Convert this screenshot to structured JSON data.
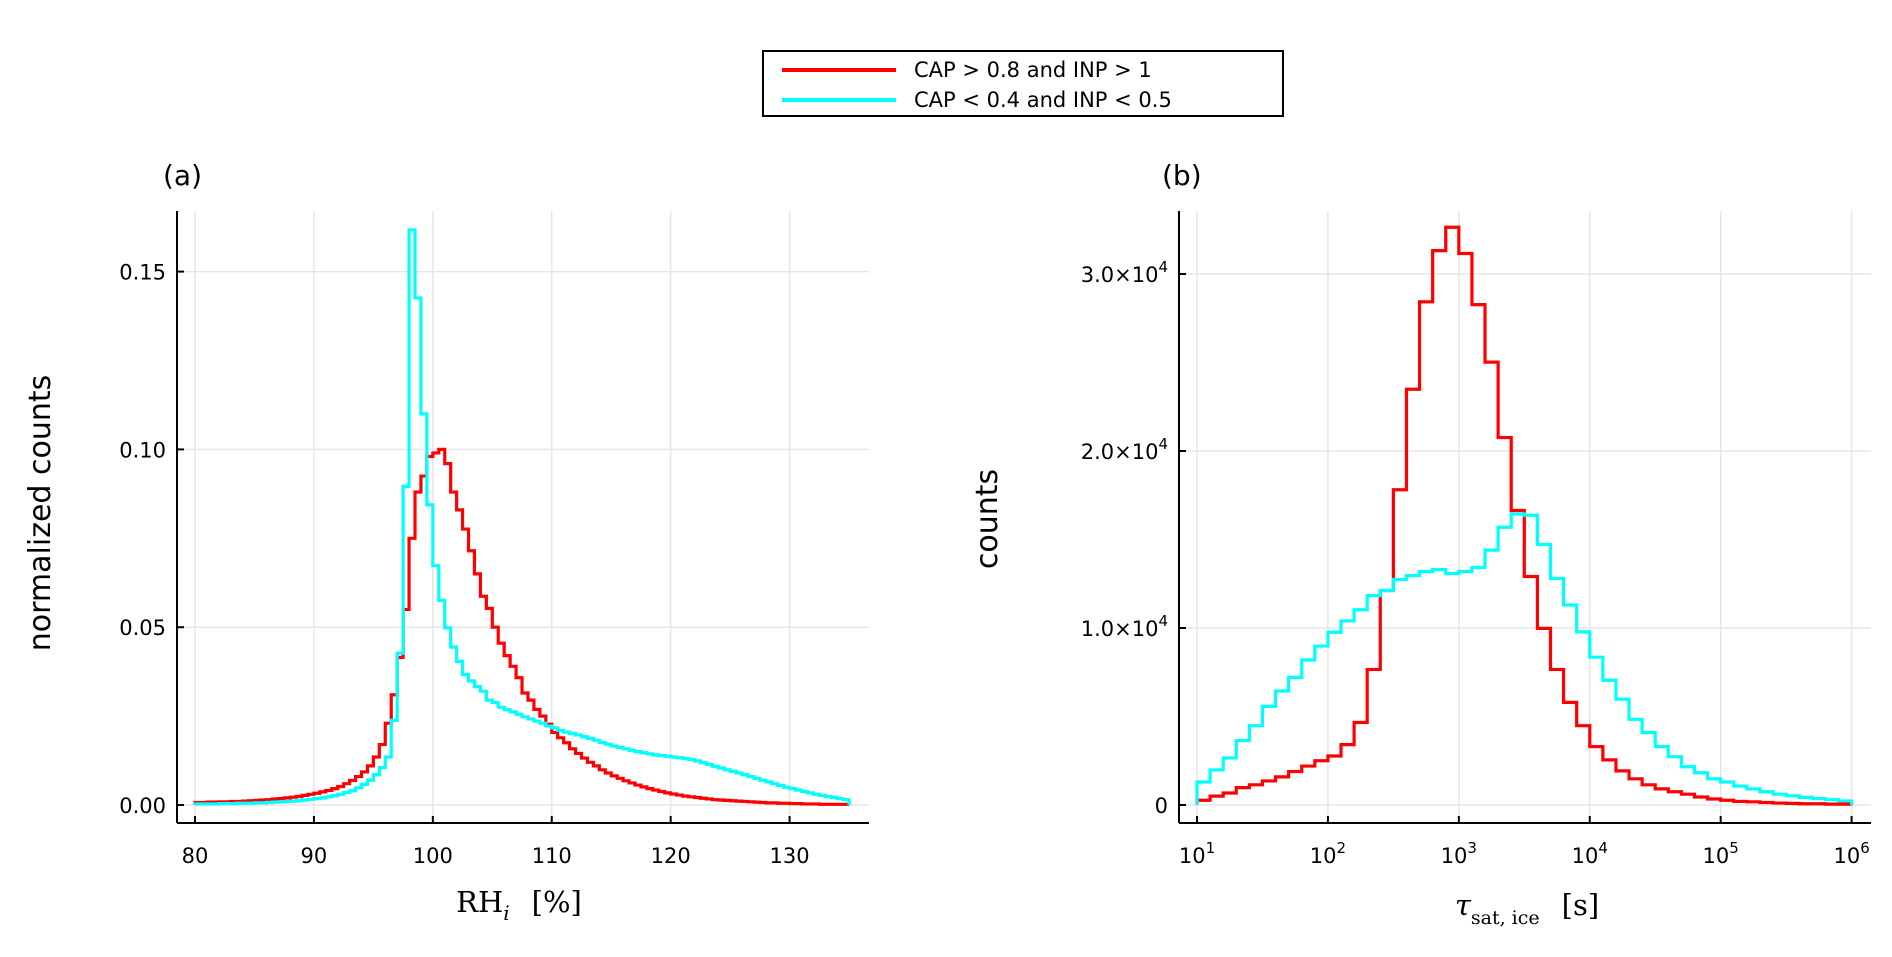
{
  "chart_data": [
    {
      "type": "histogram-step",
      "panel_label": "(a)",
      "xlabel": {
        "main": "RH",
        "sub": "i",
        "unit": "[%]"
      },
      "ylabel": "normalized counts",
      "xlim": [
        78.3,
        136.7
      ],
      "ylim": [
        -0.0045,
        0.1675
      ],
      "xscale": "linear",
      "grid": true,
      "xticks": [
        {
          "v": 80,
          "label": "80"
        },
        {
          "v": 90,
          "label": "90"
        },
        {
          "v": 100,
          "label": "100"
        },
        {
          "v": 110,
          "label": "110"
        },
        {
          "v": 120,
          "label": "120"
        },
        {
          "v": 130,
          "label": "130"
        }
      ],
      "yticks": [
        {
          "v": 0,
          "label": "0.00"
        },
        {
          "v": 0.05,
          "label": "0.05"
        },
        {
          "v": 0.1,
          "label": "0.10"
        },
        {
          "v": 0.15,
          "label": "0.15"
        }
      ],
      "bin_start": 80,
      "bin_width": 0.5,
      "series": [
        {
          "name": "CAP > 0.8 and INP > 1",
          "color": "#ff0000",
          "values": [
            0.0007,
            0.0007,
            0.0008,
            0.0008,
            0.0009,
            0.0009,
            0.001,
            0.001,
            0.0011,
            0.0012,
            0.0013,
            0.0014,
            0.0015,
            0.0017,
            0.0018,
            0.002,
            0.0022,
            0.0024,
            0.0027,
            0.003,
            0.0033,
            0.0037,
            0.0041,
            0.0046,
            0.0052,
            0.006,
            0.0069,
            0.008,
            0.0093,
            0.011,
            0.0135,
            0.017,
            0.023,
            0.031,
            0.0415,
            0.055,
            0.075,
            0.088,
            0.0925,
            0.098,
            0.099,
            0.1,
            0.096,
            0.088,
            0.083,
            0.0776,
            0.0715,
            0.065,
            0.0587,
            0.0553,
            0.05,
            0.0455,
            0.042,
            0.039,
            0.0358,
            0.0315,
            0.0295,
            0.0269,
            0.025,
            0.0227,
            0.0204,
            0.0189,
            0.0175,
            0.0158,
            0.0145,
            0.0132,
            0.012,
            0.011,
            0.0099,
            0.009,
            0.0082,
            0.0075,
            0.0068,
            0.0062,
            0.0056,
            0.0051,
            0.0046,
            0.0042,
            0.0038,
            0.0034,
            0.0031,
            0.0028,
            0.0025,
            0.0023,
            0.0021,
            0.0019,
            0.0017,
            0.0015,
            0.0014,
            0.0013,
            0.0012,
            0.0011,
            0.001,
            0.0009,
            0.0008,
            0.0007,
            0.0006,
            0.0006,
            0.0005,
            0.0005,
            0.0004,
            0.0004,
            0.0003,
            0.0003,
            0.0003,
            0.0002,
            0.0002,
            0.0002,
            0.0002,
            0.0002
          ]
        },
        {
          "name": "CAP < 0.4 and INP < 0.5",
          "color": "#00ffff",
          "values": [
            0.0003,
            0.0003,
            0.0003,
            0.0003,
            0.0004,
            0.0004,
            0.0004,
            0.0005,
            0.0005,
            0.0005,
            0.0006,
            0.0006,
            0.0007,
            0.0008,
            0.0009,
            0.001,
            0.0011,
            0.0012,
            0.0014,
            0.0016,
            0.0018,
            0.002,
            0.0023,
            0.0026,
            0.003,
            0.0035,
            0.004,
            0.0048,
            0.0058,
            0.007,
            0.0085,
            0.0105,
            0.0135,
            0.0238,
            0.0427,
            0.0896,
            0.1617,
            0.1426,
            0.11,
            0.0844,
            0.0673,
            0.0575,
            0.0498,
            0.0444,
            0.0404,
            0.0367,
            0.0349,
            0.0333,
            0.032,
            0.0295,
            0.0288,
            0.0275,
            0.0268,
            0.0262,
            0.0255,
            0.0248,
            0.0242,
            0.0236,
            0.023,
            0.0222,
            0.0217,
            0.021,
            0.0205,
            0.0201,
            0.0197,
            0.0192,
            0.0187,
            0.0182,
            0.0176,
            0.0171,
            0.0166,
            0.0162,
            0.0158,
            0.0154,
            0.015,
            0.0147,
            0.0144,
            0.0141,
            0.0139,
            0.0137,
            0.0135,
            0.0133,
            0.0131,
            0.0128,
            0.0124,
            0.0119,
            0.0114,
            0.0109,
            0.0104,
            0.0099,
            0.0095,
            0.009,
            0.0085,
            0.008,
            0.0075,
            0.007,
            0.0065,
            0.006,
            0.0055,
            0.005,
            0.0046,
            0.0042,
            0.0038,
            0.0034,
            0.003,
            0.0027,
            0.0024,
            0.0021,
            0.0018,
            0.0015
          ]
        }
      ]
    },
    {
      "type": "histogram-step",
      "panel_label": "(b)",
      "xlabel": {
        "main": "τ",
        "sub": "sat, ice",
        "unit": "[s]"
      },
      "ylabel": "counts",
      "xscale": "log10",
      "xlim_log10": [
        0.9,
        6.15
      ],
      "ylim": [
        -900,
        33200
      ],
      "grid": true,
      "xticks": [
        {
          "v": 1,
          "base": "10",
          "exp": "1"
        },
        {
          "v": 2,
          "base": "10",
          "exp": "2"
        },
        {
          "v": 3,
          "base": "10",
          "exp": "3"
        },
        {
          "v": 4,
          "base": "10",
          "exp": "4"
        },
        {
          "v": 5,
          "base": "10",
          "exp": "5"
        },
        {
          "v": 6,
          "base": "10",
          "exp": "6"
        }
      ],
      "yticks": [
        {
          "v": 0,
          "label": "0",
          "exp": ""
        },
        {
          "v": 10000,
          "label": "1.0×10",
          "exp": "4"
        },
        {
          "v": 20000,
          "label": "2.0×10",
          "exp": "4"
        },
        {
          "v": 30000,
          "label": "3.0×10",
          "exp": "4"
        }
      ],
      "bin_start_log10": 1,
      "bin_width_log10": 0.1,
      "series": [
        {
          "name": "CAP > 0.8 and INP > 1",
          "color": "#ff0000",
          "values": [
            270,
            500,
            680,
            980,
            1140,
            1360,
            1590,
            1890,
            2200,
            2500,
            2770,
            3410,
            4660,
            7660,
            12120,
            17810,
            23490,
            28430,
            31320,
            32640,
            31160,
            28270,
            25020,
            20760,
            16640,
            12910,
            9980,
            7660,
            5800,
            4480,
            3300,
            2550,
            1930,
            1480,
            1140,
            910,
            750,
            610,
            450,
            340,
            270,
            200,
            180,
            140,
            110,
            90,
            70,
            70,
            50,
            50
          ]
        },
        {
          "name": "CAP < 0.4 and INP < 0.5",
          "color": "#00ffff",
          "values": [
            1300,
            1980,
            2660,
            3640,
            4480,
            5570,
            6440,
            7210,
            8190,
            8980,
            9760,
            10400,
            11030,
            11830,
            12120,
            12740,
            12960,
            13190,
            13300,
            13080,
            13190,
            13420,
            14400,
            15690,
            16440,
            16370,
            14720,
            12800,
            11300,
            9780,
            8350,
            7050,
            5980,
            4840,
            4090,
            3300,
            2730,
            2160,
            1820,
            1480,
            1300,
            1070,
            910,
            750,
            610,
            520,
            430,
            360,
            300,
            230
          ]
        }
      ]
    }
  ],
  "legend": {
    "placement": "top-center",
    "entries": [
      {
        "label": "CAP > 0.8 and INP > 1",
        "color": "#ff0000"
      },
      {
        "label": "CAP < 0.4 and INP < 0.5",
        "color": "#00ffff"
      }
    ]
  }
}
